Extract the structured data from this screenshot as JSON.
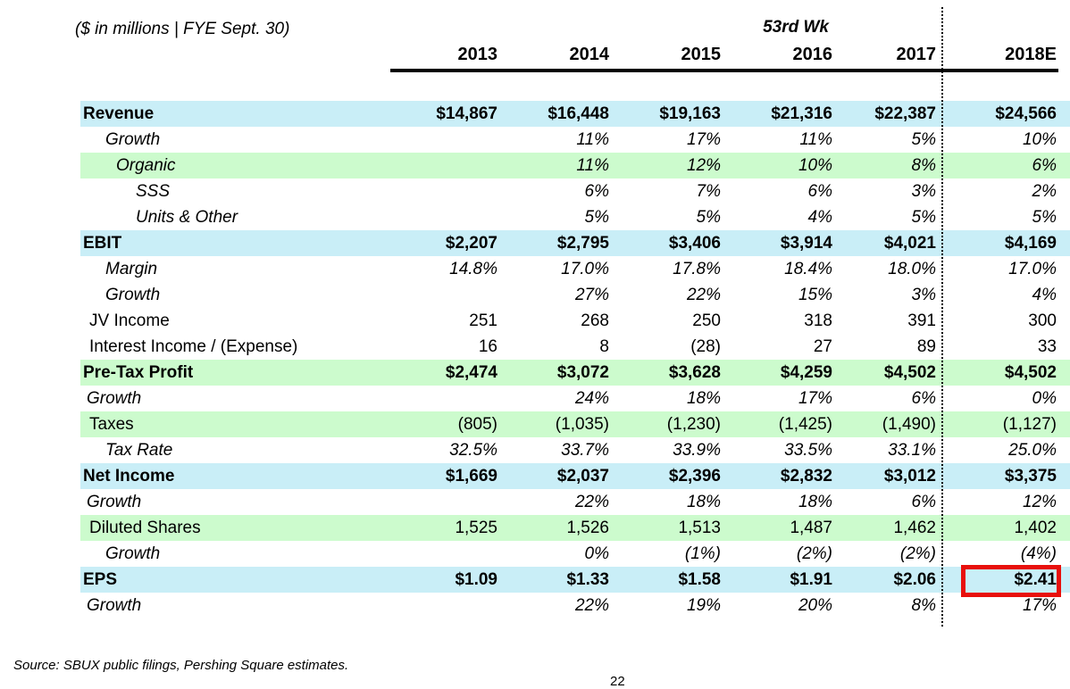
{
  "header": {
    "units_note": "($ in millions | FYE Sept. 30)",
    "week_note": "53rd Wk",
    "columns": [
      "2013",
      "2014",
      "2015",
      "2016",
      "2017",
      "2018E"
    ]
  },
  "table": {
    "rows": [
      {
        "label": "Revenue",
        "style": "bold",
        "bg": "cyan",
        "indent": 0,
        "values": [
          "$14,867",
          "$16,448",
          "$19,163",
          "$21,316",
          "$22,387",
          "$24,566"
        ]
      },
      {
        "label": "Growth",
        "style": "italic",
        "bg": "",
        "indent": 3,
        "values": [
          "",
          "11%",
          "17%",
          "11%",
          "5%",
          "10%"
        ]
      },
      {
        "label": "Organic",
        "style": "italic",
        "bg": "green",
        "indent": 4,
        "values": [
          "",
          "11%",
          "12%",
          "10%",
          "8%",
          "6%"
        ]
      },
      {
        "label": "SSS",
        "style": "italic",
        "bg": "",
        "indent": 5,
        "values": [
          "",
          "6%",
          "7%",
          "6%",
          "3%",
          "2%"
        ]
      },
      {
        "label": "Units & Other",
        "style": "italic",
        "bg": "",
        "indent": 5,
        "values": [
          "",
          "5%",
          "5%",
          "4%",
          "5%",
          "5%"
        ]
      },
      {
        "label": "EBIT",
        "style": "bold",
        "bg": "cyan",
        "indent": 0,
        "values": [
          "$2,207",
          "$2,795",
          "$3,406",
          "$3,914",
          "$4,021",
          "$4,169"
        ]
      },
      {
        "label": "Margin",
        "style": "italic",
        "bg": "",
        "indent": 3,
        "values": [
          "14.8%",
          "17.0%",
          "17.8%",
          "18.4%",
          "18.0%",
          "17.0%"
        ]
      },
      {
        "label": "Growth",
        "style": "italic",
        "bg": "",
        "indent": 3,
        "values": [
          "",
          "27%",
          "22%",
          "15%",
          "3%",
          "4%"
        ]
      },
      {
        "label": "JV Income",
        "style": "regular",
        "bg": "",
        "indent": 2,
        "values": [
          "251",
          "268",
          "250",
          "318",
          "391",
          "300"
        ]
      },
      {
        "label": "Interest Income / (Expense)",
        "style": "regular",
        "bg": "",
        "indent": 2,
        "values": [
          "16",
          "8",
          "(28)",
          "27",
          "89",
          "33"
        ]
      },
      {
        "label": "Pre-Tax Profit",
        "style": "bold",
        "bg": "green",
        "indent": 0,
        "values": [
          "$2,474",
          "$3,072",
          "$3,628",
          "$4,259",
          "$4,502",
          "$4,502"
        ]
      },
      {
        "label": "Growth",
        "style": "italic",
        "bg": "",
        "indent": 1,
        "values": [
          "",
          "24%",
          "18%",
          "17%",
          "6%",
          "0%"
        ]
      },
      {
        "label": "Taxes",
        "style": "regular",
        "bg": "green",
        "indent": 2,
        "values": [
          "(805)",
          "(1,035)",
          "(1,230)",
          "(1,425)",
          "(1,490)",
          "(1,127)"
        ]
      },
      {
        "label": "Tax Rate",
        "style": "italic",
        "bg": "",
        "indent": 3,
        "values": [
          "32.5%",
          "33.7%",
          "33.9%",
          "33.5%",
          "33.1%",
          "25.0%"
        ]
      },
      {
        "label": "Net Income",
        "style": "bold",
        "bg": "cyan",
        "indent": 0,
        "values": [
          "$1,669",
          "$2,037",
          "$2,396",
          "$2,832",
          "$3,012",
          "$3,375"
        ]
      },
      {
        "label": "Growth",
        "style": "italic",
        "bg": "",
        "indent": 1,
        "values": [
          "",
          "22%",
          "18%",
          "18%",
          "6%",
          "12%"
        ]
      },
      {
        "label": "Diluted Shares",
        "style": "regular",
        "bg": "green",
        "indent": 2,
        "values": [
          "1,525",
          "1,526",
          "1,513",
          "1,487",
          "1,462",
          "1,402"
        ]
      },
      {
        "label": "Growth",
        "style": "italic",
        "bg": "",
        "indent": 3,
        "values": [
          "",
          "0%",
          "(1%)",
          "(2%)",
          "(2%)",
          "(4%)"
        ]
      },
      {
        "label": "EPS",
        "style": "bold",
        "bg": "cyan",
        "indent": 0,
        "values": [
          "$1.09",
          "$1.33",
          "$1.58",
          "$1.91",
          "$2.06",
          "$2.41"
        ]
      },
      {
        "label": "Growth",
        "style": "italic",
        "bg": "",
        "indent": 1,
        "values": [
          "",
          "22%",
          "19%",
          "20%",
          "8%",
          "17%"
        ]
      }
    ]
  },
  "highlight": {
    "row_label": "EPS",
    "column": "2018E",
    "value": "$2.41"
  },
  "footer": {
    "source": "Source: SBUX public filings, Pershing Square estimates.",
    "page_number": "22"
  },
  "colors": {
    "row_cyan": "#c9eef7",
    "row_green": "#ccfbcd",
    "highlight_red": "#e8100c",
    "text": "#000000"
  }
}
